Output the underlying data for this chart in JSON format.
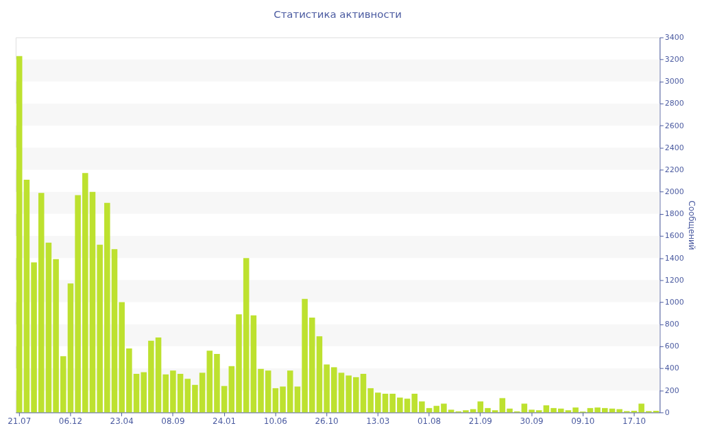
{
  "chart_data": {
    "type": "bar",
    "title": "Статистика активности",
    "ylabel": "Сообщений",
    "categories": [
      "21.07",
      null,
      null,
      null,
      null,
      null,
      null,
      "06.12",
      null,
      null,
      null,
      null,
      null,
      null,
      "23.04",
      null,
      null,
      null,
      null,
      null,
      null,
      "08.09",
      null,
      null,
      null,
      null,
      null,
      null,
      "24.01",
      null,
      null,
      null,
      null,
      null,
      null,
      "10.06",
      null,
      null,
      null,
      null,
      null,
      null,
      "26.10",
      null,
      null,
      null,
      null,
      null,
      null,
      "13.03",
      null,
      null,
      null,
      null,
      null,
      null,
      "01.08",
      null,
      null,
      null,
      null,
      null,
      null,
      "21.09",
      null,
      null,
      null,
      null,
      null,
      null,
      "30.09",
      null,
      null,
      null,
      null,
      null,
      null,
      "09.10",
      null,
      null,
      null,
      null,
      null,
      null,
      "17.10",
      null,
      null,
      null
    ],
    "values": [
      3230,
      2110,
      1360,
      1990,
      1540,
      1390,
      510,
      1170,
      1970,
      2170,
      2000,
      1520,
      1900,
      1480,
      1000,
      580,
      350,
      365,
      650,
      680,
      345,
      380,
      350,
      305,
      250,
      360,
      560,
      530,
      240,
      420,
      890,
      1400,
      880,
      395,
      380,
      220,
      235,
      380,
      235,
      1030,
      860,
      690,
      435,
      410,
      360,
      335,
      320,
      350,
      220,
      180,
      170,
      170,
      135,
      125,
      170,
      100,
      40,
      60,
      80,
      25,
      10,
      20,
      30,
      100,
      40,
      20,
      130,
      35,
      10,
      80,
      25,
      20,
      65,
      40,
      35,
      20,
      45,
      8,
      40,
      45,
      40,
      35,
      30,
      12,
      15,
      80,
      12,
      15
    ],
    "color": "#bde12f",
    "ylim": [
      0,
      3400
    ],
    "yticks": [
      0,
      200,
      400,
      600,
      800,
      1000,
      1200,
      1400,
      1600,
      1800,
      2000,
      2200,
      2400,
      2600,
      2800,
      3000,
      3200,
      3400
    ],
    "bands": [
      {
        "axis": "y",
        "from": 200,
        "to": 400,
        "color": "#f7f7f7"
      },
      {
        "axis": "y",
        "from": 600,
        "to": 800,
        "color": "#f7f7f7"
      },
      {
        "axis": "y",
        "from": 1000,
        "to": 1200,
        "color": "#f7f7f7"
      },
      {
        "axis": "y",
        "from": 1400,
        "to": 1600,
        "color": "#f7f7f7"
      },
      {
        "axis": "y",
        "from": 1800,
        "to": 2000,
        "color": "#f7f7f7"
      },
      {
        "axis": "y",
        "from": 2200,
        "to": 2400,
        "color": "#f7f7f7"
      },
      {
        "axis": "y",
        "from": 2600,
        "to": 2800,
        "color": "#f7f7f7"
      },
      {
        "axis": "y",
        "from": 3000,
        "to": 3200,
        "color": "#f7f7f7"
      }
    ],
    "grid": false
  }
}
